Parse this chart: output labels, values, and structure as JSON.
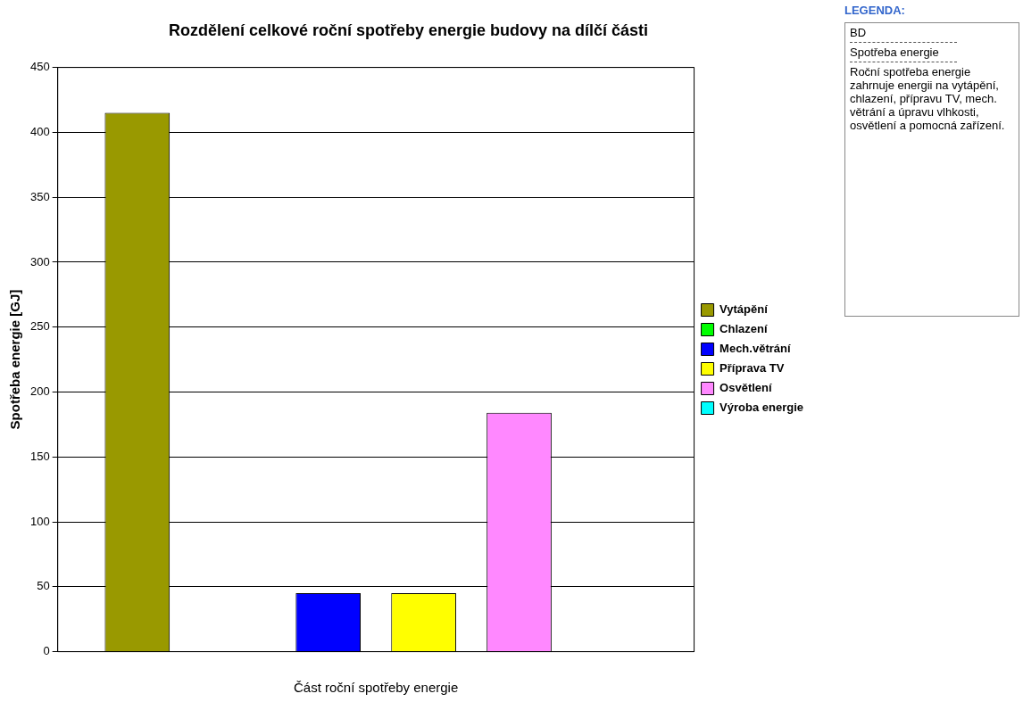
{
  "chart_data": {
    "type": "bar",
    "title": "Rozdělení celkové roční spotřeby energie budovy na dílčí části",
    "xlabel": "Část roční spotřeby energie",
    "ylabel": "Spotřeba energie [GJ]",
    "categories": [
      null
    ],
    "series": [
      {
        "name": "Vytápění",
        "color": "#999900",
        "values": [
          415
        ]
      },
      {
        "name": "Chlazení",
        "color": "#00ff00",
        "values": [
          0
        ]
      },
      {
        "name": "Mech.větrání",
        "color": "#0000ff",
        "values": [
          45
        ]
      },
      {
        "name": "Příprava TV",
        "color": "#ffff00",
        "values": [
          45
        ]
      },
      {
        "name": "Osvětlení",
        "color": "#ff88ff",
        "values": [
          184
        ]
      },
      {
        "name": "Výroba energie",
        "color": "#00ffff",
        "values": [
          0
        ]
      }
    ],
    "ylim": [
      0,
      450
    ],
    "yticks": [
      0,
      50,
      100,
      150,
      200,
      250,
      300,
      350,
      400,
      450
    ],
    "grid": "y",
    "legend": "right",
    "annotations": [
      "LEGENDA:",
      "BD",
      "Spotřeba energie",
      "Roční spotřeba energie zahrnuje energii na vytápění, chlazení, přípravu TV, mech. větrání a úpravu vlhkosti, osvětlení a pomocná zařízení."
    ]
  }
}
